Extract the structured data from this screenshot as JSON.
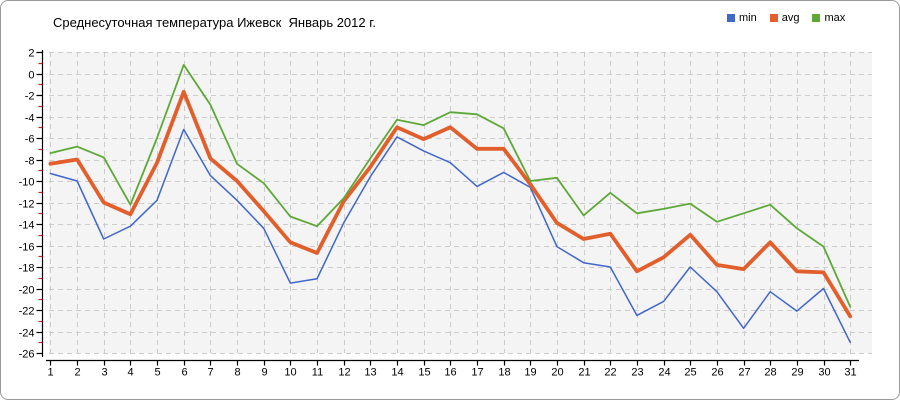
{
  "window": {
    "title": "Среднесуточная температура Ижевск  Январь 2012 г."
  },
  "chart_data": {
    "type": "line",
    "title": "Среднесуточная температура Ижевск  Январь 2012 г.",
    "xlabel": "",
    "ylabel": "",
    "x": [
      1,
      2,
      3,
      4,
      5,
      6,
      7,
      8,
      9,
      10,
      11,
      12,
      13,
      14,
      15,
      16,
      17,
      18,
      19,
      20,
      21,
      22,
      23,
      24,
      25,
      26,
      27,
      28,
      29,
      30,
      31
    ],
    "x_tick_labels": [
      "1",
      "2",
      "3",
      "4",
      "5",
      "6",
      "7",
      "8",
      "9",
      "10",
      "11",
      "12",
      "13",
      "14",
      "15",
      "16",
      "17",
      "18",
      "19",
      "20",
      "21",
      "22",
      "23",
      "24",
      "25",
      "26",
      "27",
      "28",
      "29",
      "30",
      "31"
    ],
    "ylim": [
      2,
      -26
    ],
    "y_tick_step": 2,
    "y_tick_labels": [
      "2",
      "0",
      "-2",
      "-4",
      "-6",
      "-8",
      "-10",
      "-12",
      "-14",
      "-16",
      "-18",
      "-20",
      "-22",
      "-24",
      "-26"
    ],
    "grid": true,
    "legend_position": "top-right",
    "series": [
      {
        "name": "min",
        "color": "#4166cc",
        "values": [
          -9.3,
          -10.0,
          -15.4,
          -14.2,
          -11.8,
          -5.2,
          -9.5,
          -11.8,
          -14.4,
          -19.5,
          -19.1,
          -13.9,
          -9.6,
          -5.9,
          -7.2,
          -8.3,
          -10.5,
          -9.2,
          -10.6,
          -16.1,
          -17.6,
          -18.0,
          -22.5,
          -21.2,
          -18.0,
          -20.3,
          -23.7,
          -20.3,
          -22.1,
          -20.0,
          -25.0
        ]
      },
      {
        "name": "avg",
        "color": "#e25f2b",
        "values": [
          -8.4,
          -8.0,
          -12.0,
          -13.1,
          -8.3,
          -1.7,
          -7.9,
          -10.0,
          -12.8,
          -15.7,
          -16.7,
          -11.9,
          -8.7,
          -5.0,
          -6.1,
          -5.0,
          -7.0,
          -7.0,
          -10.3,
          -13.9,
          -15.4,
          -14.9,
          -18.4,
          -17.1,
          -15.0,
          -17.8,
          -18.2,
          -15.7,
          -18.4,
          -18.5,
          -22.6
        ]
      },
      {
        "name": "max",
        "color": "#5ea838",
        "values": [
          -7.4,
          -6.8,
          -7.8,
          -12.2,
          -6.0,
          0.8,
          -2.9,
          -8.4,
          -10.2,
          -13.3,
          -14.2,
          -11.6,
          -7.9,
          -4.3,
          -4.8,
          -3.6,
          -3.8,
          -5.1,
          -10.0,
          -9.7,
          -13.2,
          -11.1,
          -13.0,
          -12.6,
          -12.1,
          -13.8,
          -13.0,
          -12.2,
          -14.4,
          -16.1,
          -21.7
        ]
      }
    ],
    "colors": {
      "plot_background": "#f4f4f4",
      "grid": "#cccccc",
      "axis": "#000000",
      "minor_tick": "#cc2222"
    }
  }
}
